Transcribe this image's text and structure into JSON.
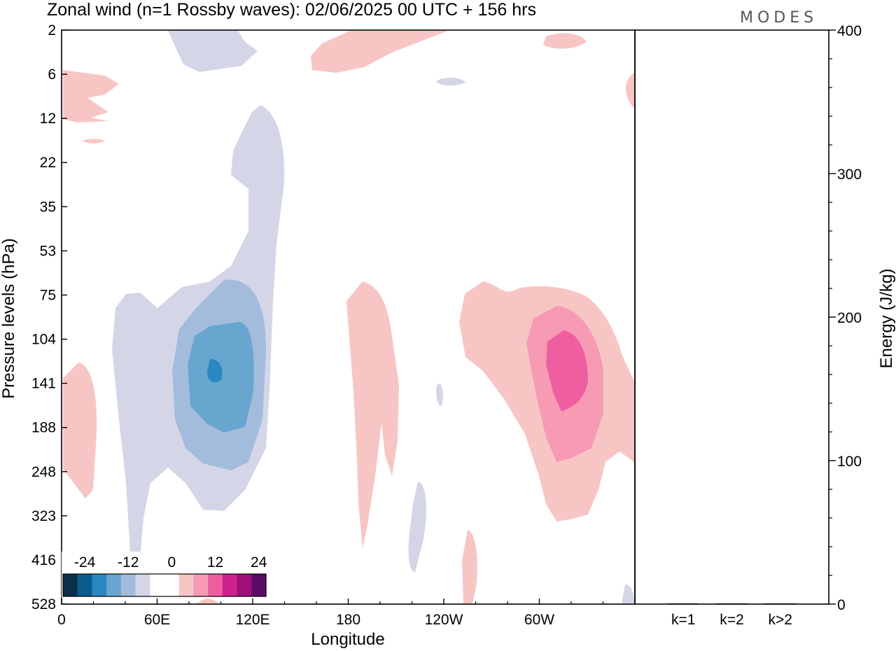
{
  "chart_data": {
    "type": "heatmap",
    "title": "Zonal wind (n=1 Rossby waves):  02/06/2025  00 UTC  + 156 hrs",
    "logo": "MODES",
    "xlabel": "Longitude",
    "ylabel": "Pressure levels (hPa)",
    "y2label": "Energy (J/kg)",
    "x_ticks": [
      "0",
      "60E",
      "120E",
      "180",
      "120W",
      "60W"
    ],
    "y_ticks": [
      "2",
      "6",
      "12",
      "22",
      "35",
      "53",
      "75",
      "104",
      "141",
      "188",
      "248",
      "323",
      "416",
      "528"
    ],
    "energy_ticks": [
      "0",
      "100",
      "200",
      "300",
      "400"
    ],
    "energy_ylim": [
      0,
      400
    ],
    "energy_bars": [
      {
        "label": "k=1",
        "value": 0.5
      },
      {
        "label": "k=2",
        "value": 0.5
      },
      {
        "label": "k>2",
        "value": 0.5
      }
    ],
    "colorbar": {
      "labels": [
        "-24",
        "-12",
        "0",
        "12",
        "24"
      ],
      "colors": [
        "#08304a",
        "#0b5c8e",
        "#2a88c0",
        "#68a6d0",
        "#a4bcdc",
        "#d4d6e8",
        "#ffffff",
        "#ffffff",
        "#f7c6c4",
        "#f79ab4",
        "#ef5fa0",
        "#d0208c",
        "#a0107a",
        "#5c0a68"
      ]
    },
    "features": [
      {
        "sign": "negative",
        "lon": 95,
        "level": 141,
        "peak": -22
      },
      {
        "sign": "positive",
        "lon": 290,
        "level": 130,
        "peak": 15
      },
      {
        "sign": "positive",
        "lon": 190,
        "level": 150,
        "peak": 4
      },
      {
        "sign": "positive",
        "lon": 5,
        "level": 200,
        "peak": 4
      },
      {
        "sign": "negative",
        "lon": 80,
        "level": 6,
        "peak": -3
      },
      {
        "sign": "positive",
        "lon": 200,
        "level": 4,
        "peak": 3
      }
    ]
  }
}
